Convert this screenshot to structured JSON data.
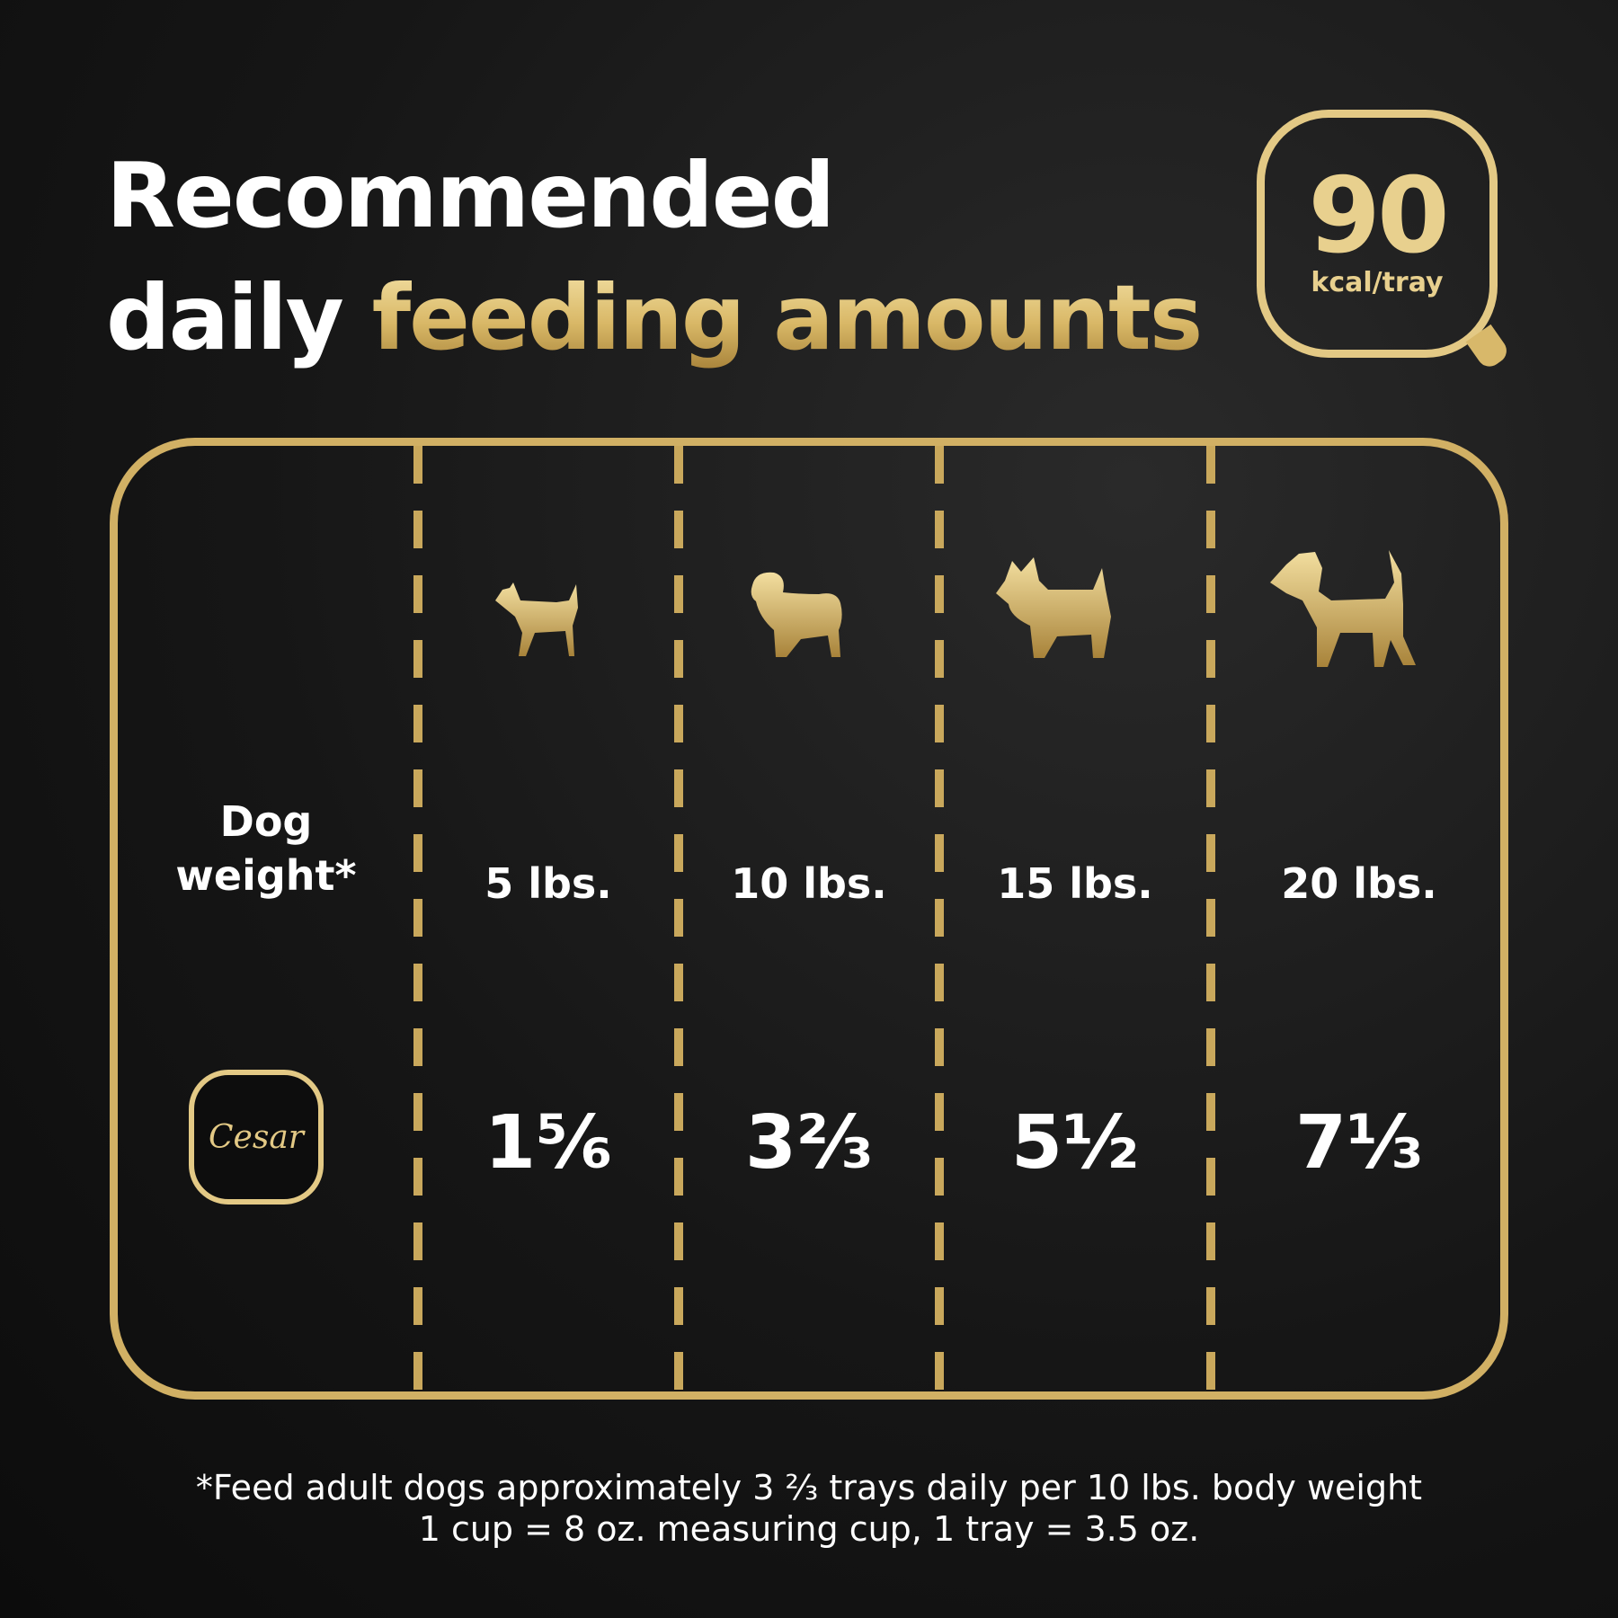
{
  "title": {
    "line1": "Recommended",
    "line2_white": "daily",
    "line2_gold": "feeding amounts"
  },
  "badge": {
    "value": "90",
    "unit": "kcal/tray"
  },
  "table": {
    "row_label": {
      "line1": "Dog",
      "line2": "weight*"
    },
    "brand_logo": "Cesar",
    "columns": [
      {
        "weight": "5 lbs.",
        "trays": "1⅚",
        "dog_icon": "small-dog-icon"
      },
      {
        "weight": "10 lbs.",
        "trays": "3⅔",
        "dog_icon": "pug-icon"
      },
      {
        "weight": "15 lbs.",
        "trays": "5½",
        "dog_icon": "terrier-icon"
      },
      {
        "weight": "20 lbs.",
        "trays": "7⅓",
        "dog_icon": "large-terrier-icon"
      }
    ]
  },
  "footnote": {
    "line1": "*Feed adult dogs approximately 3 ⅔ trays daily per 10 lbs. body weight",
    "line2": "1 cup = 8 oz. measuring cup, 1 tray = 3.5 oz."
  },
  "colors": {
    "gold": "#d1b064",
    "background": "#161616",
    "text": "#ffffff"
  }
}
